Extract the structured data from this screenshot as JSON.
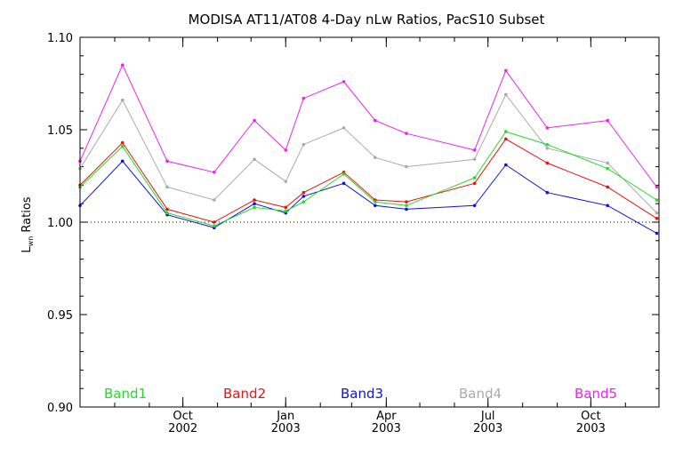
{
  "chart_data": {
    "type": "line",
    "title": "MODISA AT11/AT08 4-Day nLw Ratios, PacS10 Subset",
    "ylabel_main": "L",
    "ylabel_sub": "wn",
    "ylabel_rest": " Ratios",
    "ylim": [
      0.9,
      1.1
    ],
    "yticks": [
      "0.90",
      "0.95",
      "1.00",
      "1.05",
      "1.10"
    ],
    "xlim": [
      "2002-07-01",
      "2003-12-01"
    ],
    "xticks": [
      {
        "month": "Oct",
        "year": "2002",
        "date": "2002-10-01"
      },
      {
        "month": "Jan",
        "year": "2003",
        "date": "2003-01-01"
      },
      {
        "month": "Apr",
        "year": "2003",
        "date": "2003-04-01"
      },
      {
        "month": "Jul",
        "year": "2003",
        "date": "2003-07-01"
      },
      {
        "month": "Oct",
        "year": "2003",
        "date": "2003-10-01"
      }
    ],
    "reference_line": 1.0,
    "x": [
      "2002-07-01",
      "2002-08-08",
      "2002-09-17",
      "2002-10-29",
      "2002-12-04",
      "2003-01-01",
      "2003-01-17",
      "2003-02-22",
      "2003-03-22",
      "2003-04-19",
      "2003-06-19",
      "2003-07-17",
      "2003-08-23",
      "2003-10-16",
      "2003-11-29"
    ],
    "series": [
      {
        "name": "Band1",
        "color": "#22dd22",
        "values": [
          1.019,
          1.041,
          1.005,
          0.998,
          1.008,
          1.006,
          1.011,
          1.026,
          1.011,
          1.009,
          1.024,
          1.049,
          1.042,
          1.029,
          1.012
        ]
      },
      {
        "name": "Band2",
        "color": "#ee1111",
        "values": [
          1.02,
          1.043,
          1.007,
          1.0,
          1.012,
          1.008,
          1.016,
          1.027,
          1.012,
          1.011,
          1.021,
          1.045,
          1.032,
          1.019,
          1.002
        ]
      },
      {
        "name": "Band3",
        "color": "#1111dd",
        "values": [
          1.009,
          1.033,
          1.004,
          0.997,
          1.01,
          1.005,
          1.014,
          1.021,
          1.009,
          1.007,
          1.009,
          1.031,
          1.016,
          1.009,
          0.994
        ]
      },
      {
        "name": "Band4",
        "color": "#aaaaaa",
        "values": [
          1.029,
          1.066,
          1.019,
          1.012,
          1.034,
          1.022,
          1.042,
          1.051,
          1.035,
          1.03,
          1.034,
          1.069,
          1.04,
          1.032,
          1.005
        ]
      },
      {
        "name": "Band5",
        "color": "#ee22ee",
        "values": [
          1.033,
          1.085,
          1.033,
          1.027,
          1.055,
          1.039,
          1.067,
          1.076,
          1.055,
          1.048,
          1.039,
          1.082,
          1.051,
          1.055,
          1.019
        ]
      }
    ]
  }
}
